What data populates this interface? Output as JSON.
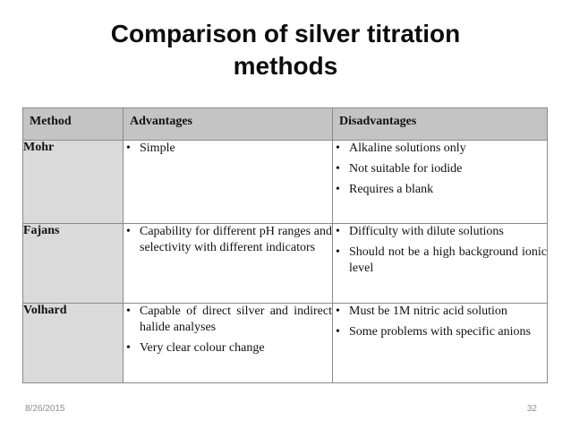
{
  "slide": {
    "title_line1": "Comparison of silver titration",
    "title_line2": "methods",
    "date": "8/26/2015",
    "page_number": "32"
  },
  "table": {
    "headers": [
      "Method",
      "Advantages",
      "Disadvantages"
    ],
    "rows": [
      {
        "method": "Mohr",
        "advantages": [
          "Simple"
        ],
        "disadvantages": [
          "Alkaline solutions only",
          "Not suitable for iodide",
          "Requires a blank"
        ]
      },
      {
        "method": "Fajans",
        "advantages": [
          "Capability for different pH ranges and selectivity with different indicators"
        ],
        "disadvantages": [
          "Difficulty with dilute solutions",
          "Should not be a high background ionic level"
        ]
      },
      {
        "method": "Volhard",
        "advantages": [
          "Capable of direct silver and indirect halide analyses",
          "Very clear colour change"
        ],
        "disadvantages": [
          "Must be 1M nitric acid solution",
          "Some problems with specific anions"
        ]
      }
    ]
  }
}
